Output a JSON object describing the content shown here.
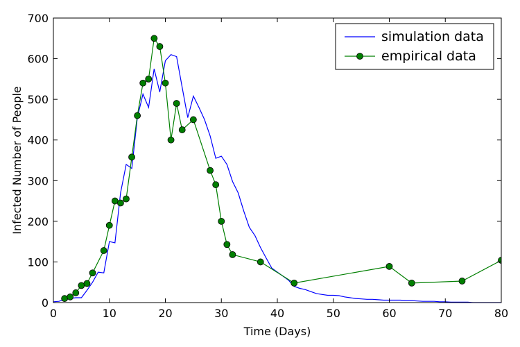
{
  "chart_data": {
    "type": "line",
    "title": "",
    "xlabel": "Time (Days)",
    "ylabel": "Infected Number of People",
    "xlim": [
      0,
      80
    ],
    "ylim": [
      0,
      700
    ],
    "xticks": [
      0,
      10,
      20,
      30,
      40,
      50,
      60,
      70,
      80
    ],
    "yticks": [
      0,
      100,
      200,
      300,
      400,
      500,
      600,
      700
    ],
    "grid": false,
    "legend": "top-right",
    "series": [
      {
        "name": "simulation data",
        "color": "#0000ff",
        "marker": "none",
        "x": [
          0,
          1,
          2,
          3,
          4,
          5,
          6,
          7,
          8,
          9,
          10,
          11,
          12,
          13,
          14,
          15,
          16,
          17,
          18,
          19,
          20,
          21,
          22,
          23,
          24,
          25,
          26,
          27,
          28,
          29,
          30,
          31,
          32,
          33,
          34,
          35,
          36,
          37,
          38,
          39,
          40,
          41,
          42,
          43,
          44,
          45,
          46,
          47,
          48,
          49,
          50,
          51,
          52,
          53,
          54,
          55,
          56,
          57,
          58,
          59,
          60,
          61,
          62,
          63,
          64,
          65,
          66,
          67,
          68,
          69,
          70,
          71,
          72,
          73,
          74,
          75,
          76,
          77,
          78,
          79,
          80
        ],
        "y": [
          2,
          3,
          8,
          10,
          12,
          12,
          30,
          50,
          75,
          73,
          150,
          147,
          270,
          340,
          330,
          455,
          513,
          480,
          575,
          518,
          595,
          610,
          605,
          530,
          455,
          508,
          480,
          450,
          410,
          355,
          360,
          340,
          298,
          270,
          225,
          185,
          165,
          135,
          110,
          85,
          75,
          65,
          55,
          40,
          35,
          32,
          27,
          22,
          20,
          18,
          18,
          17,
          14,
          12,
          10,
          9,
          8,
          8,
          7,
          6,
          6,
          6,
          6,
          5,
          5,
          4,
          3,
          3,
          3,
          2,
          2,
          1,
          1,
          1,
          1,
          0,
          0,
          0,
          0,
          0,
          0
        ]
      },
      {
        "name": "empirical data",
        "color": "#007f00",
        "marker": "circle",
        "x": [
          2,
          3,
          4,
          5,
          6,
          7,
          9,
          10,
          11,
          12,
          13,
          14,
          15,
          16,
          17,
          18,
          19,
          20,
          21,
          22,
          23,
          25,
          28,
          29,
          30,
          31,
          32,
          37,
          43,
          60,
          64,
          73,
          80
        ],
        "y": [
          10,
          14,
          24,
          42,
          47,
          73,
          128,
          190,
          250,
          245,
          255,
          358,
          460,
          540,
          550,
          650,
          630,
          540,
          400,
          490,
          425,
          450,
          325,
          290,
          200,
          143,
          118,
          100,
          48,
          89,
          48,
          53,
          104
        ]
      }
    ]
  }
}
